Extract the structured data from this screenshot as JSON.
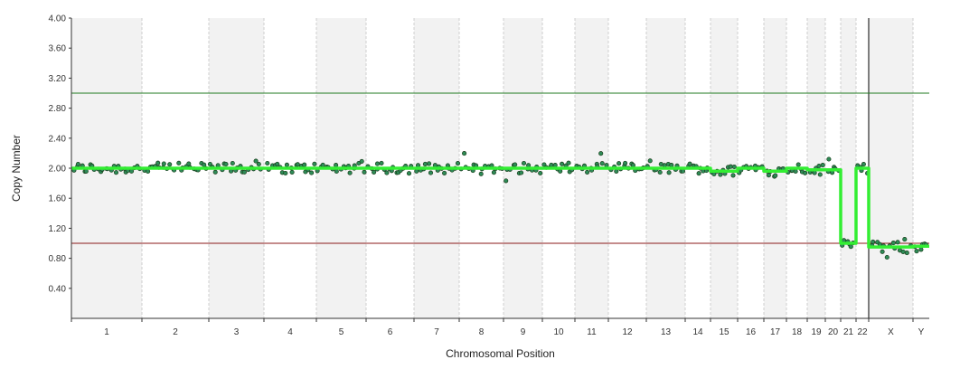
{
  "chart_data": {
    "type": "scatter",
    "title": "",
    "xlabel": "Chromosomal Position",
    "ylabel": "Copy Number",
    "ylim": [
      0,
      4
    ],
    "yticks": [
      "0.40",
      "0.80",
      "1.20",
      "1.60",
      "2.00",
      "2.40",
      "2.80",
      "3.20",
      "3.60",
      "4.00"
    ],
    "grid": "alternating chromosome bands",
    "reference_lines": [
      {
        "value": 3.0,
        "color": "#1f7a1f"
      },
      {
        "value": 1.0,
        "color": "#8b1a1a"
      }
    ],
    "chromosomes": [
      {
        "label": "1",
        "level": 2.0
      },
      {
        "label": "2",
        "level": 2.0
      },
      {
        "label": "3",
        "level": 2.0
      },
      {
        "label": "4",
        "level": 2.0
      },
      {
        "label": "5",
        "level": 2.0
      },
      {
        "label": "6",
        "level": 2.0
      },
      {
        "label": "7",
        "level": 2.0
      },
      {
        "label": "8",
        "level": 2.0
      },
      {
        "label": "9",
        "level": 2.0
      },
      {
        "label": "10",
        "level": 2.0
      },
      {
        "label": "11",
        "level": 2.0
      },
      {
        "label": "12",
        "level": 2.0
      },
      {
        "label": "13",
        "level": 2.0
      },
      {
        "label": "14",
        "level": 2.0
      },
      {
        "label": "15",
        "level": 1.96
      },
      {
        "label": "16",
        "level": 2.0
      },
      {
        "label": "17",
        "level": 1.96
      },
      {
        "label": "18",
        "level": 2.0
      },
      {
        "label": "19",
        "level": 1.98
      },
      {
        "label": "20",
        "level": 1.98
      },
      {
        "label": "21",
        "level": 1.0
      },
      {
        "label": "22",
        "level": 2.0
      },
      {
        "label": "X",
        "level": 0.95
      },
      {
        "label": "Y",
        "level": 0.96
      }
    ],
    "point_color": "#2e8b57",
    "segment_color": "#33ee33"
  }
}
